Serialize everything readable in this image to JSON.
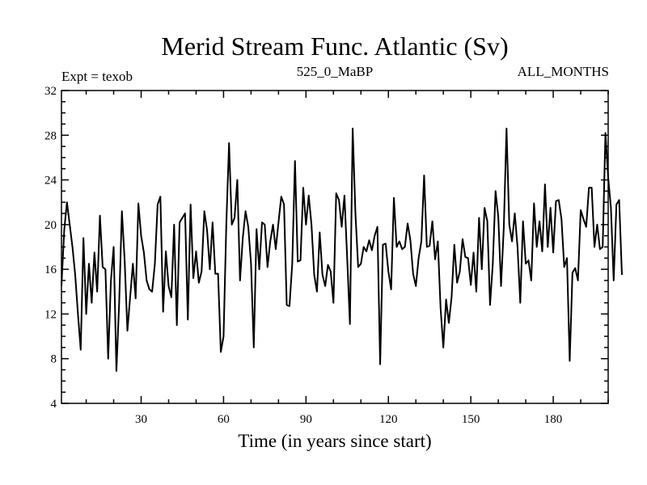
{
  "chart_data": {
    "type": "line",
    "title": "Merid Stream Func. Atlantic (Sv)",
    "subtitle_left": "Expt = texob",
    "subtitle_center": "525_0_MaBP",
    "subtitle_right": "ALL_MONTHS",
    "xlabel": "Time (in years since start)",
    "ylabel": "",
    "xlim": [
      1,
      200
    ],
    "ylim": [
      4,
      32
    ],
    "xticks": [
      30,
      60,
      90,
      120,
      150,
      180
    ],
    "yticks": [
      4,
      8,
      12,
      16,
      20,
      24,
      28,
      32
    ],
    "grid": false,
    "series": [
      {
        "name": "Merid Stream Func. Atlantic",
        "color": "#000000",
        "x_start": 1,
        "x_step": 1,
        "values": [
          14.5,
          19.5,
          22.0,
          20.0,
          18.0,
          15.5,
          12.0,
          8.8,
          18.8,
          12.0,
          16.5,
          13.0,
          17.5,
          14.0,
          20.8,
          16.2,
          16.0,
          8.0,
          15.0,
          18.0,
          6.9,
          13.0,
          21.2,
          16.8,
          10.5,
          13.5,
          16.5,
          13.4,
          21.9,
          19.0,
          17.5,
          15.0,
          14.2,
          14.0,
          16.5,
          21.8,
          22.5,
          12.2,
          17.6,
          14.5,
          13.5,
          20.0,
          11.0,
          20.2,
          20.6,
          21.0,
          11.5,
          21.8,
          15.2,
          17.6,
          14.8,
          15.8,
          21.2,
          19.5,
          16.0,
          20.2,
          15.6,
          15.6,
          8.6,
          10.0,
          20.0,
          27.3,
          20.0,
          20.6,
          24.0,
          15.0,
          18.8,
          21.2,
          19.8,
          16.5,
          9.0,
          19.6,
          16.0,
          20.2,
          20.0,
          16.2,
          18.5,
          20.0,
          17.8,
          20.2,
          22.5,
          21.8,
          12.8,
          12.7,
          16.5,
          25.7,
          16.7,
          16.8,
          23.3,
          20.0,
          22.6,
          20.0,
          15.5,
          14.0,
          19.3,
          15.5,
          14.5,
          16.4,
          15.8,
          13.0,
          22.8,
          22.2,
          19.8,
          22.6,
          17.0,
          11.1,
          28.6,
          21.0,
          16.2,
          16.5,
          18.0,
          17.6,
          18.6,
          17.7,
          19.0,
          19.8,
          7.5,
          18.2,
          18.3,
          15.8,
          14.2,
          22.4,
          18.0,
          18.5,
          17.8,
          18.0,
          20.1,
          18.6,
          15.6,
          14.5,
          17.0,
          18.5,
          24.4,
          18.0,
          18.1,
          20.3,
          16.9,
          18.5,
          12.5,
          9.0,
          13.3,
          11.2,
          13.5,
          18.2,
          14.8,
          15.8,
          18.7,
          17.1,
          17.0,
          14.6,
          17.5,
          14.0,
          20.6,
          16.0,
          21.5,
          20.3,
          12.8,
          16.5,
          23.0,
          20.7,
          14.5,
          19.7,
          28.6,
          20.0,
          18.5,
          21.0,
          18.0,
          13.0,
          20.3,
          16.5,
          16.8,
          15.0,
          21.9,
          18.0,
          20.3,
          17.6,
          23.6,
          18.0,
          21.5,
          17.5,
          22.1,
          22.2,
          20.5,
          16.2,
          17.0,
          7.8,
          15.7,
          16.1,
          15.0,
          21.3,
          20.5,
          19.8,
          23.3,
          23.3,
          18.0,
          20.0,
          17.8,
          18.0,
          28.2,
          24.2,
          21.5,
          15.0,
          21.8,
          22.2,
          15.5
        ]
      }
    ]
  }
}
